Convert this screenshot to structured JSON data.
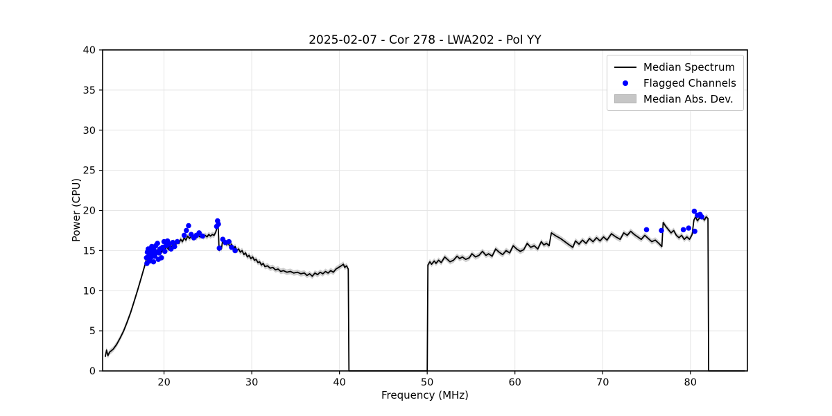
{
  "chart_data": {
    "type": "line",
    "title": "2025-02-07 - Cor 278 - LWA202 - Pol YY",
    "xlabel": "Frequency (MHz)",
    "ylabel": "Power (CPU)",
    "xlim": [
      13.0,
      86.5
    ],
    "ylim": [
      0,
      40
    ],
    "xticks": [
      20,
      30,
      40,
      50,
      60,
      70,
      80
    ],
    "yticks": [
      0,
      5,
      10,
      15,
      20,
      25,
      30,
      35,
      40
    ],
    "grid": true,
    "grid_color": "#e5e5e5",
    "line_color": "#000000",
    "marker_color": "#0000ff",
    "band_color": "#aaaaaa",
    "band_halfwidth": 0.35,
    "legend": {
      "position": "upper right",
      "entries": [
        {
          "label": "Median Spectrum",
          "type": "line",
          "color": "#000000"
        },
        {
          "label": "Flagged Channels",
          "type": "marker",
          "color": "#0000ff"
        },
        {
          "label": "Median Abs. Dev.",
          "type": "patch",
          "color": "#c6c6c6"
        }
      ]
    },
    "series": [
      {
        "name": "Median Spectrum",
        "points": [
          [
            13.3,
            1.75
          ],
          [
            13.45,
            2.6
          ],
          [
            13.6,
            1.9
          ],
          [
            13.8,
            2.35
          ],
          [
            14.2,
            2.7
          ],
          [
            14.6,
            3.3
          ],
          [
            15.0,
            4.1
          ],
          [
            15.4,
            5.0
          ],
          [
            15.8,
            6.1
          ],
          [
            16.2,
            7.3
          ],
          [
            16.6,
            8.7
          ],
          [
            17.0,
            10.1
          ],
          [
            17.4,
            11.6
          ],
          [
            17.8,
            13.1
          ],
          [
            18.05,
            14.2
          ],
          [
            18.2,
            14.8
          ],
          [
            18.3,
            13.8
          ],
          [
            18.45,
            14.6
          ],
          [
            18.55,
            13.9
          ],
          [
            18.7,
            15.0
          ],
          [
            18.85,
            14.3
          ],
          [
            19.0,
            15.1
          ],
          [
            19.15,
            14.4
          ],
          [
            19.3,
            15.2
          ],
          [
            19.45,
            14.6
          ],
          [
            19.6,
            15.3
          ],
          [
            19.75,
            14.8
          ],
          [
            19.95,
            15.5
          ],
          [
            20.1,
            14.9
          ],
          [
            20.3,
            15.6
          ],
          [
            20.5,
            15.1
          ],
          [
            20.7,
            15.9
          ],
          [
            20.9,
            15.3
          ],
          [
            21.1,
            16.1
          ],
          [
            21.3,
            15.6
          ],
          [
            21.5,
            16.2
          ],
          [
            21.7,
            15.9
          ],
          [
            21.9,
            16.4
          ],
          [
            22.1,
            16.1
          ],
          [
            22.3,
            16.6
          ],
          [
            22.5,
            16.3
          ],
          [
            22.7,
            16.8
          ],
          [
            22.9,
            16.5
          ],
          [
            23.1,
            16.8
          ],
          [
            23.3,
            16.5
          ],
          [
            23.5,
            16.9
          ],
          [
            23.7,
            16.6
          ],
          [
            23.9,
            16.9
          ],
          [
            24.1,
            16.7
          ],
          [
            24.3,
            17.0
          ],
          [
            24.5,
            16.7
          ],
          [
            24.7,
            16.9
          ],
          [
            24.9,
            16.7
          ],
          [
            25.1,
            17.0
          ],
          [
            25.3,
            16.8
          ],
          [
            25.5,
            17.0
          ],
          [
            25.7,
            16.9
          ],
          [
            25.9,
            17.3
          ],
          [
            26.05,
            17.9
          ],
          [
            26.15,
            18.3
          ],
          [
            26.22,
            16.8
          ],
          [
            26.28,
            15.0
          ],
          [
            26.4,
            15.5
          ],
          [
            26.55,
            15.2
          ],
          [
            26.7,
            16.4
          ],
          [
            26.85,
            15.9
          ],
          [
            27.0,
            16.2
          ],
          [
            27.15,
            15.7
          ],
          [
            27.3,
            16.0
          ],
          [
            27.5,
            15.5
          ],
          [
            27.7,
            15.8
          ],
          [
            27.9,
            15.2
          ],
          [
            28.1,
            15.5
          ],
          [
            28.3,
            15.0
          ],
          [
            28.5,
            15.2
          ],
          [
            28.7,
            14.8
          ],
          [
            28.9,
            15.0
          ],
          [
            29.1,
            14.5
          ],
          [
            29.3,
            14.7
          ],
          [
            29.5,
            14.2
          ],
          [
            29.7,
            14.4
          ],
          [
            29.9,
            14.0
          ],
          [
            30.1,
            14.2
          ],
          [
            30.3,
            13.8
          ],
          [
            30.5,
            13.9
          ],
          [
            30.7,
            13.5
          ],
          [
            30.9,
            13.6
          ],
          [
            31.1,
            13.2
          ],
          [
            31.3,
            13.4
          ],
          [
            31.5,
            13.0
          ],
          [
            31.8,
            13.1
          ],
          [
            32.1,
            12.8
          ],
          [
            32.4,
            12.9
          ],
          [
            32.7,
            12.6
          ],
          [
            33.0,
            12.7
          ],
          [
            33.3,
            12.4
          ],
          [
            33.6,
            12.5
          ],
          [
            34.0,
            12.3
          ],
          [
            34.4,
            12.4
          ],
          [
            34.8,
            12.2
          ],
          [
            35.2,
            12.3
          ],
          [
            35.6,
            12.1
          ],
          [
            36.0,
            12.2
          ],
          [
            36.3,
            11.9
          ],
          [
            36.6,
            12.1
          ],
          [
            36.9,
            11.8
          ],
          [
            37.2,
            12.2
          ],
          [
            37.5,
            12.0
          ],
          [
            37.8,
            12.3
          ],
          [
            38.1,
            12.1
          ],
          [
            38.4,
            12.4
          ],
          [
            38.7,
            12.2
          ],
          [
            39.0,
            12.5
          ],
          [
            39.3,
            12.3
          ],
          [
            39.6,
            12.7
          ],
          [
            39.9,
            12.9
          ],
          [
            40.2,
            13.1
          ],
          [
            40.45,
            13.3
          ],
          [
            40.6,
            12.9
          ],
          [
            40.8,
            13.1
          ],
          [
            41.0,
            12.7
          ],
          [
            41.08,
            0
          ],
          [
            50.0,
            0
          ],
          [
            50.08,
            13.2
          ],
          [
            50.3,
            13.6
          ],
          [
            50.5,
            13.3
          ],
          [
            50.8,
            13.7
          ],
          [
            51.0,
            13.4
          ],
          [
            51.3,
            13.8
          ],
          [
            51.6,
            13.5
          ],
          [
            52.0,
            14.2
          ],
          [
            52.3,
            13.9
          ],
          [
            52.6,
            13.6
          ],
          [
            53.0,
            13.8
          ],
          [
            53.4,
            14.3
          ],
          [
            53.7,
            14.0
          ],
          [
            54.0,
            14.2
          ],
          [
            54.4,
            13.9
          ],
          [
            54.8,
            14.1
          ],
          [
            55.1,
            14.6
          ],
          [
            55.5,
            14.2
          ],
          [
            55.9,
            14.4
          ],
          [
            56.3,
            14.9
          ],
          [
            56.7,
            14.4
          ],
          [
            57.0,
            14.6
          ],
          [
            57.4,
            14.3
          ],
          [
            57.8,
            15.2
          ],
          [
            58.2,
            14.8
          ],
          [
            58.6,
            14.5
          ],
          [
            59.0,
            15.0
          ],
          [
            59.4,
            14.7
          ],
          [
            59.8,
            15.6
          ],
          [
            60.2,
            15.2
          ],
          [
            60.6,
            14.9
          ],
          [
            61.0,
            15.1
          ],
          [
            61.4,
            15.9
          ],
          [
            61.8,
            15.4
          ],
          [
            62.2,
            15.6
          ],
          [
            62.6,
            15.2
          ],
          [
            63.0,
            16.1
          ],
          [
            63.3,
            15.7
          ],
          [
            63.6,
            15.9
          ],
          [
            63.9,
            15.6
          ],
          [
            64.15,
            17.2
          ],
          [
            64.7,
            16.8
          ],
          [
            65.2,
            16.5
          ],
          [
            65.7,
            16.1
          ],
          [
            66.2,
            15.7
          ],
          [
            66.6,
            15.4
          ],
          [
            66.9,
            16.2
          ],
          [
            67.3,
            15.8
          ],
          [
            67.7,
            16.3
          ],
          [
            68.1,
            15.9
          ],
          [
            68.5,
            16.5
          ],
          [
            68.9,
            16.1
          ],
          [
            69.3,
            16.6
          ],
          [
            69.7,
            16.2
          ],
          [
            70.1,
            16.7
          ],
          [
            70.5,
            16.3
          ],
          [
            71.0,
            17.1
          ],
          [
            71.5,
            16.7
          ],
          [
            72.0,
            16.4
          ],
          [
            72.4,
            17.2
          ],
          [
            72.8,
            16.9
          ],
          [
            73.2,
            17.4
          ],
          [
            73.6,
            17.0
          ],
          [
            74.0,
            16.7
          ],
          [
            74.4,
            16.4
          ],
          [
            74.8,
            16.9
          ],
          [
            75.2,
            16.5
          ],
          [
            75.6,
            16.1
          ],
          [
            76.0,
            16.3
          ],
          [
            76.4,
            15.9
          ],
          [
            76.75,
            15.5
          ],
          [
            76.9,
            18.5
          ],
          [
            77.2,
            18.0
          ],
          [
            77.5,
            17.6
          ],
          [
            77.8,
            17.2
          ],
          [
            78.1,
            17.5
          ],
          [
            78.4,
            16.9
          ],
          [
            78.7,
            16.6
          ],
          [
            79.0,
            16.9
          ],
          [
            79.3,
            16.4
          ],
          [
            79.6,
            16.7
          ],
          [
            79.9,
            16.4
          ],
          [
            80.2,
            17.0
          ],
          [
            80.4,
            18.8
          ],
          [
            80.6,
            19.2
          ],
          [
            80.8,
            18.7
          ],
          [
            81.0,
            19.0
          ],
          [
            81.2,
            19.5
          ],
          [
            81.4,
            19.1
          ],
          [
            81.6,
            18.8
          ],
          [
            81.8,
            19.2
          ],
          [
            82.0,
            19.0
          ],
          [
            82.08,
            0
          ],
          [
            86.2,
            0
          ]
        ]
      },
      {
        "name": "Flagged Channels",
        "points": [
          [
            18.0,
            14.1
          ],
          [
            18.05,
            13.4
          ],
          [
            18.1,
            14.8
          ],
          [
            18.2,
            15.2
          ],
          [
            18.3,
            14.4
          ],
          [
            18.35,
            13.7
          ],
          [
            18.45,
            15.0
          ],
          [
            18.55,
            14.2
          ],
          [
            18.6,
            15.5
          ],
          [
            18.7,
            14.6
          ],
          [
            18.8,
            13.6
          ],
          [
            18.85,
            15.1
          ],
          [
            18.95,
            14.3
          ],
          [
            19.05,
            15.6
          ],
          [
            19.15,
            14.8
          ],
          [
            19.25,
            15.9
          ],
          [
            19.35,
            13.9
          ],
          [
            19.45,
            14.7
          ],
          [
            19.55,
            15.2
          ],
          [
            19.7,
            14.1
          ],
          [
            19.85,
            15.4
          ],
          [
            20.0,
            16.1
          ],
          [
            20.1,
            14.9
          ],
          [
            20.25,
            15.6
          ],
          [
            20.4,
            16.2
          ],
          [
            20.6,
            15.8
          ],
          [
            20.8,
            15.2
          ],
          [
            21.0,
            16.0
          ],
          [
            21.2,
            15.5
          ],
          [
            21.5,
            16.1
          ],
          [
            22.3,
            16.9
          ],
          [
            22.55,
            17.5
          ],
          [
            22.8,
            18.1
          ],
          [
            23.1,
            17.0
          ],
          [
            23.4,
            16.6
          ],
          [
            23.7,
            16.9
          ],
          [
            24.0,
            17.2
          ],
          [
            24.4,
            16.8
          ],
          [
            26.0,
            18.0
          ],
          [
            26.1,
            18.7
          ],
          [
            26.2,
            18.3
          ],
          [
            26.3,
            15.3
          ],
          [
            26.7,
            16.4
          ],
          [
            27.0,
            16.0
          ],
          [
            27.4,
            16.1
          ],
          [
            27.7,
            15.4
          ],
          [
            28.1,
            15.0
          ],
          [
            75.0,
            17.6
          ],
          [
            76.7,
            17.5
          ],
          [
            79.2,
            17.6
          ],
          [
            79.8,
            17.8
          ],
          [
            80.5,
            17.4
          ],
          [
            80.45,
            19.9
          ],
          [
            80.8,
            19.4
          ],
          [
            81.1,
            19.5
          ],
          [
            81.3,
            19.2
          ]
        ]
      }
    ]
  }
}
